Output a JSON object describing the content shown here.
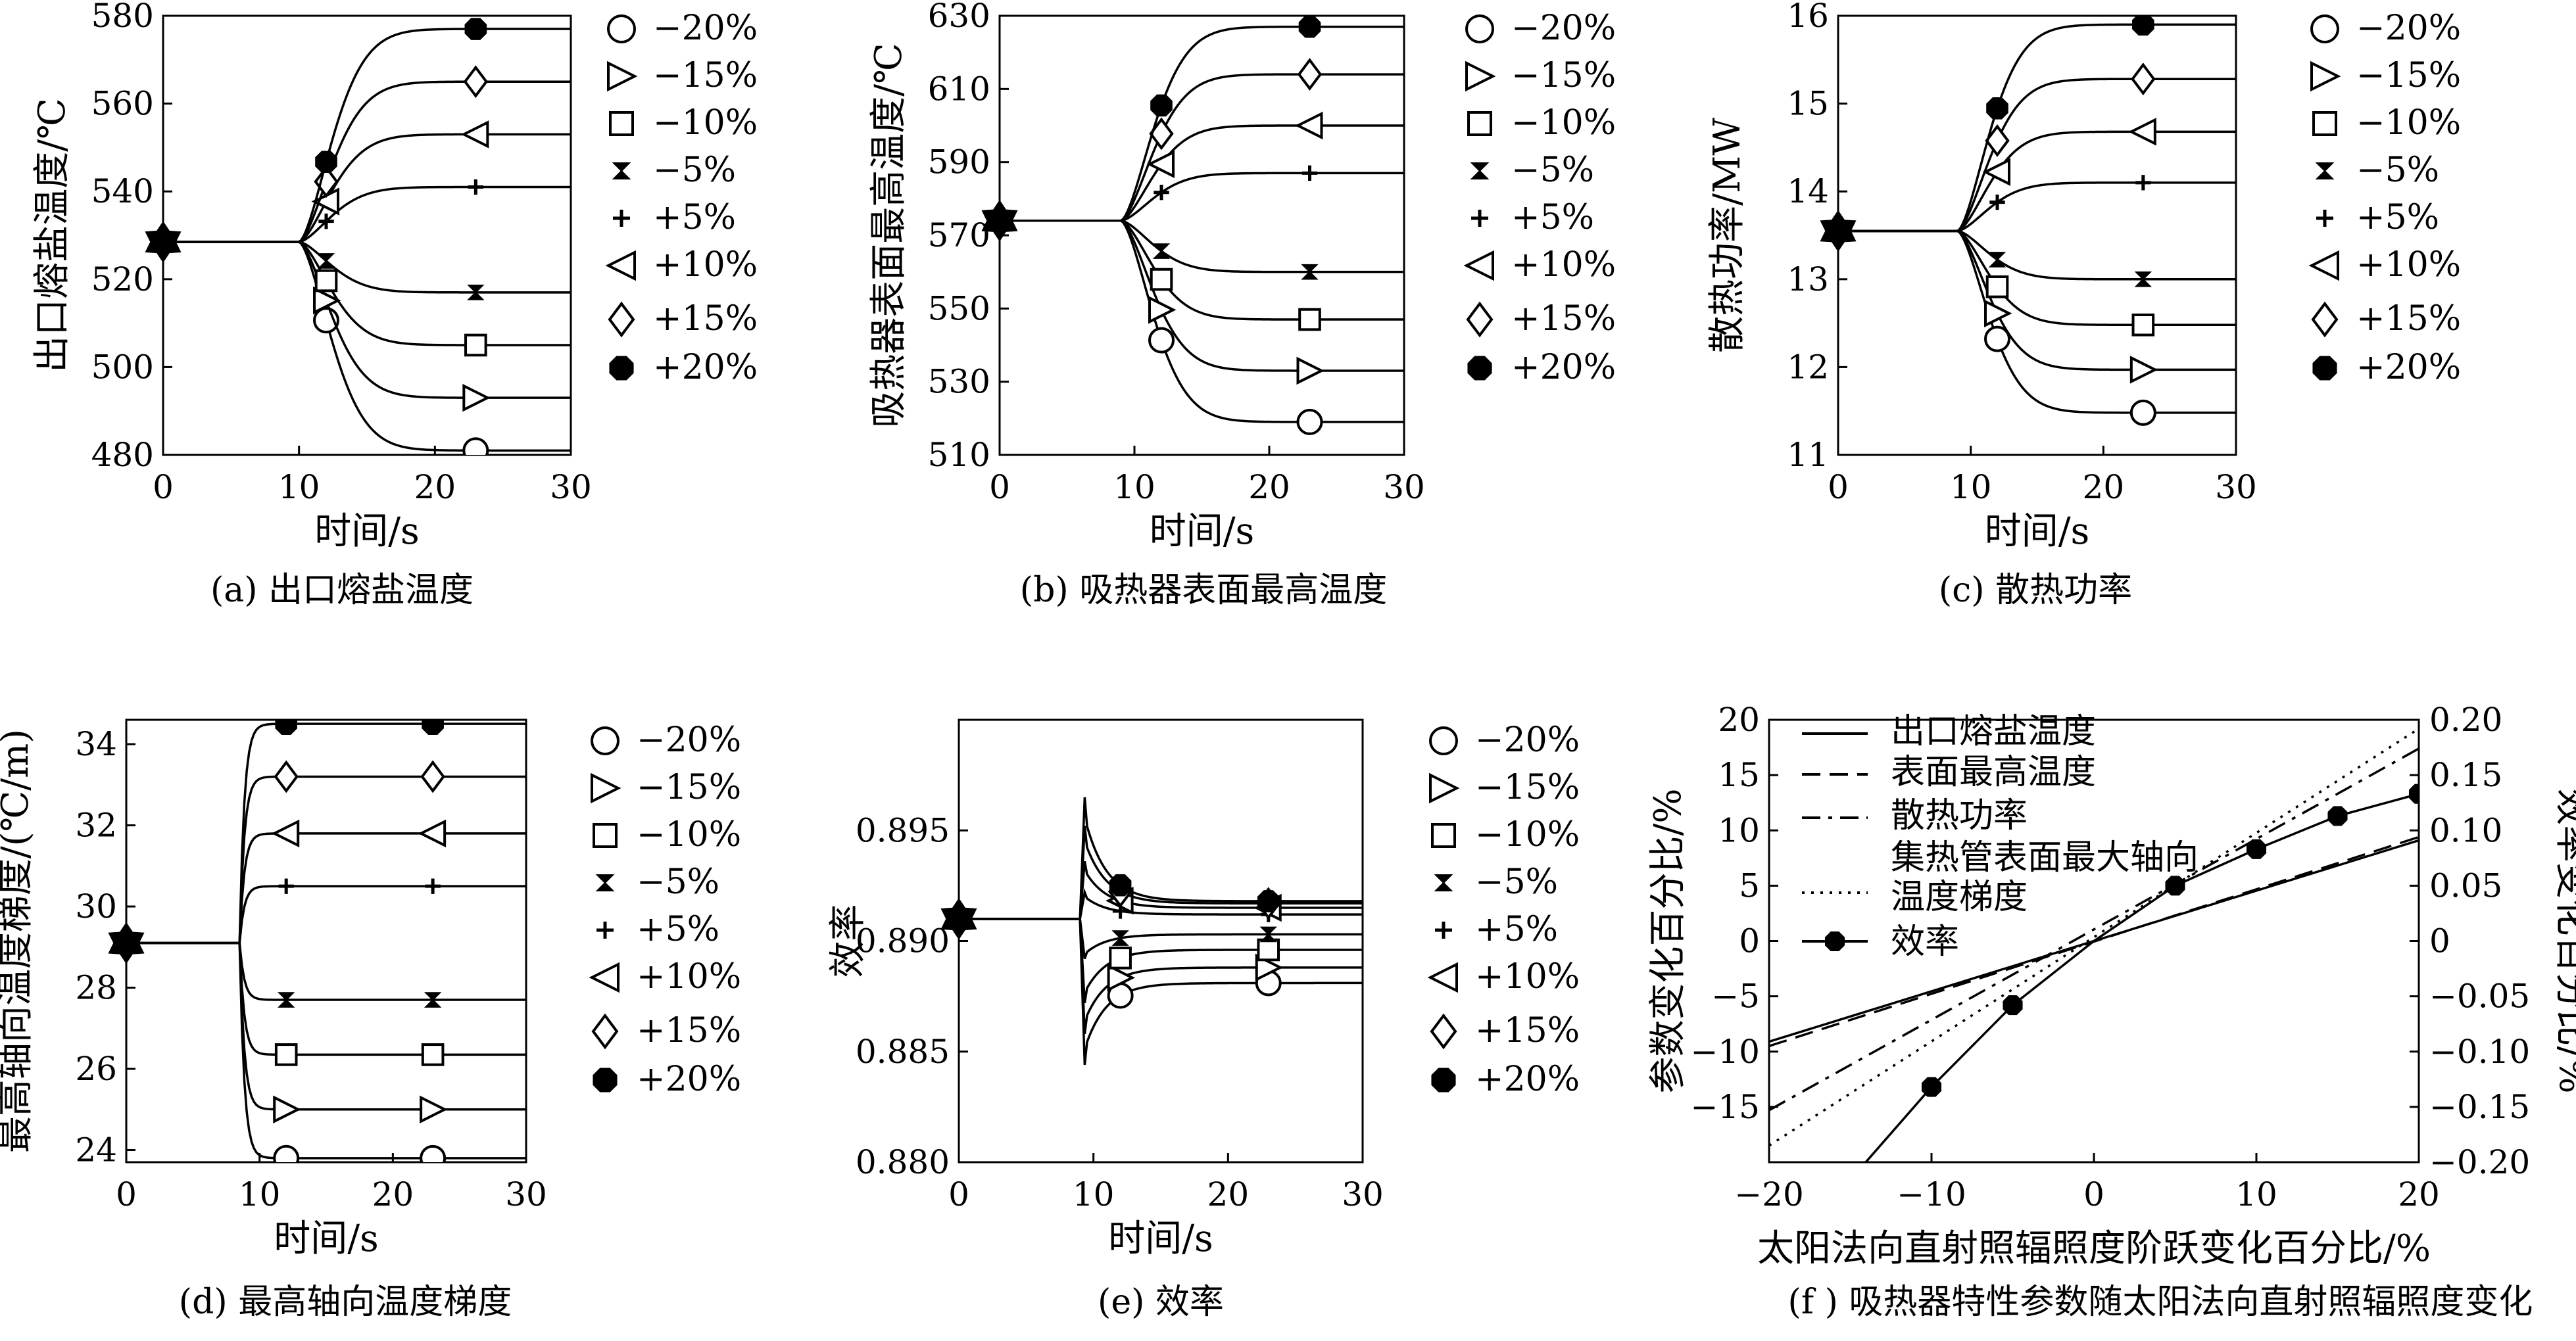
{
  "figure": {
    "series_labels": [
      "−20%",
      "−15%",
      "−10%",
      "−5%",
      "+5%",
      "+10%",
      "+15%",
      "+20%"
    ],
    "series_markers": [
      "circle-icon",
      "triangle-right-icon",
      "square-icon",
      "bowtie-icon",
      "plus-icon",
      "triangle-left-icon",
      "diamond-icon",
      "octagon-filled-icon"
    ]
  },
  "chart_data": [
    {
      "id": "a",
      "type": "line",
      "caption": "(a) 出口熔盐温度",
      "xlabel": "时间/s",
      "ylabel": "出口熔盐温度/℃",
      "xlim": [
        0,
        30
      ],
      "ylim": [
        480,
        580
      ],
      "xticks": [
        0,
        10,
        20,
        30
      ],
      "yticks": [
        480,
        500,
        520,
        540,
        560,
        580
      ],
      "t_step": 10,
      "initial": 528.5,
      "series": [
        {
          "name": "−20%",
          "final": 481
        },
        {
          "name": "−15%",
          "final": 493
        },
        {
          "name": "−10%",
          "final": 505
        },
        {
          "name": "−5%",
          "final": 517
        },
        {
          "name": "+5%",
          "final": 541
        },
        {
          "name": "+10%",
          "final": 553
        },
        {
          "name": "+15%",
          "final": 565
        },
        {
          "name": "+20%",
          "final": 577
        }
      ]
    },
    {
      "id": "b",
      "type": "line",
      "caption": "(b) 吸热器表面最高温度",
      "xlabel": "时间/s",
      "ylabel": "吸热器表面最高温度/℃",
      "xlim": [
        0,
        30
      ],
      "ylim": [
        510,
        630
      ],
      "xticks": [
        0,
        10,
        20,
        30
      ],
      "yticks": [
        510,
        530,
        550,
        570,
        590,
        610,
        630
      ],
      "t_step": 9,
      "initial": 574,
      "series": [
        {
          "name": "−20%",
          "final": 519
        },
        {
          "name": "−15%",
          "final": 533
        },
        {
          "name": "−10%",
          "final": 547
        },
        {
          "name": "−5%",
          "final": 560
        },
        {
          "name": "+5%",
          "final": 587
        },
        {
          "name": "+10%",
          "final": 600
        },
        {
          "name": "+15%",
          "final": 614
        },
        {
          "name": "+20%",
          "final": 627
        }
      ]
    },
    {
      "id": "c",
      "type": "line",
      "caption": "(c) 散热功率",
      "xlabel": "时间/s",
      "ylabel": "散热功率/MW",
      "xlim": [
        0,
        30
      ],
      "ylim": [
        11,
        16
      ],
      "xticks": [
        0,
        10,
        20,
        30
      ],
      "yticks": [
        11,
        12,
        13,
        14,
        15,
        16
      ],
      "t_step": 9,
      "initial": 13.55,
      "series": [
        {
          "name": "−20%",
          "final": 11.48
        },
        {
          "name": "−15%",
          "final": 11.97
        },
        {
          "name": "−10%",
          "final": 12.48
        },
        {
          "name": "−5%",
          "final": 13.0
        },
        {
          "name": "+5%",
          "final": 14.1
        },
        {
          "name": "+10%",
          "final": 14.68
        },
        {
          "name": "+15%",
          "final": 15.28
        },
        {
          "name": "+20%",
          "final": 15.9
        }
      ]
    },
    {
      "id": "d",
      "type": "line",
      "caption": "(d) 最高轴向温度梯度",
      "xlabel": "时间/s",
      "ylabel": "最高轴向温度梯度/(℃/m)",
      "xlim": [
        0,
        30
      ],
      "ylim": [
        23.7,
        34.6
      ],
      "xticks": [
        0,
        10,
        20,
        30
      ],
      "yticks": [
        24,
        26,
        28,
        30,
        32,
        34
      ],
      "t_step": 8.5,
      "initial": 29.1,
      "series": [
        {
          "name": "−20%",
          "final": 23.8
        },
        {
          "name": "−15%",
          "final": 25.0
        },
        {
          "name": "−10%",
          "final": 26.35
        },
        {
          "name": "−5%",
          "final": 27.7
        },
        {
          "name": "+5%",
          "final": 30.5
        },
        {
          "name": "+10%",
          "final": 31.8
        },
        {
          "name": "+15%",
          "final": 33.2
        },
        {
          "name": "+20%",
          "final": 34.5
        }
      ]
    },
    {
      "id": "e",
      "type": "line",
      "caption": "(e) 效率",
      "xlabel": "时间/s",
      "ylabel": "效率",
      "xlim": [
        0,
        30
      ],
      "ylim": [
        0.88,
        0.9
      ],
      "xticks": [
        0,
        10,
        20,
        30
      ],
      "yticks": [
        0.88,
        0.885,
        0.89,
        0.895
      ],
      "ytick_labels": [
        "0.880",
        "0.885",
        "0.890",
        "0.895"
      ],
      "t_step": 9,
      "initial": 0.891,
      "series": [
        {
          "name": "−20%",
          "final": 0.8881,
          "overshoot": -0.0066
        },
        {
          "name": "−15%",
          "final": 0.8888,
          "overshoot": -0.0052
        },
        {
          "name": "−10%",
          "final": 0.8896,
          "overshoot": -0.0038
        },
        {
          "name": "−5%",
          "final": 0.8903,
          "overshoot": -0.0018
        },
        {
          "name": "+5%",
          "final": 0.8912,
          "overshoot": 0.0012
        },
        {
          "name": "+10%",
          "final": 0.8915,
          "overshoot": 0.0026
        },
        {
          "name": "+15%",
          "final": 0.8917,
          "overshoot": 0.0042
        },
        {
          "name": "+20%",
          "final": 0.8918,
          "overshoot": 0.0055
        }
      ]
    },
    {
      "id": "f",
      "type": "line",
      "caption": "(f ) 吸热器特性参数随太阳法向直射照辐照度变化",
      "xlabel": "太阳法向直射照辐照度阶跃变化百分比/%",
      "ylabel": "参数变化百分比/%",
      "y2label": "效率变化百分比/%",
      "xlim": [
        -20,
        20
      ],
      "ylim": [
        -20,
        20
      ],
      "y2lim": [
        -0.2,
        0.2
      ],
      "xticks": [
        -20,
        -10,
        0,
        10,
        20
      ],
      "yticks": [
        -15,
        -10,
        -5,
        0,
        5,
        10,
        15,
        20
      ],
      "y2ticks": [
        -0.2,
        -0.15,
        -0.1,
        -0.05,
        0,
        0.05,
        0.1,
        0.15,
        0.2
      ],
      "y2tick_labels": [
        "−0.20",
        "−0.15",
        "−0.10",
        "−0.05",
        "0",
        "0.05",
        "0.10",
        "0.15",
        "0.20"
      ],
      "series": [
        {
          "name": "出口熔盐温度",
          "style": "solid",
          "x": [
            -20,
            20
          ],
          "y": [
            -9.1,
            9.1
          ]
        },
        {
          "name": "表面最高温度",
          "style": "dash",
          "x": [
            -20,
            20
          ],
          "y": [
            -9.5,
            9.4
          ]
        },
        {
          "name": "散热功率",
          "style": "dashdot",
          "x": [
            -20,
            20
          ],
          "y": [
            -15.3,
            17.4
          ]
        },
        {
          "name": "集热管表面最大轴向温度梯度",
          "style": "dotted",
          "x": [
            -20,
            20
          ],
          "y": [
            -18.5,
            19.2
          ]
        },
        {
          "name": "效率",
          "style": "solid-marker",
          "axis": "right",
          "x": [
            -20,
            -10,
            -5,
            0,
            5,
            10,
            15,
            20
          ],
          "y": [
            -0.3,
            -0.132,
            -0.058,
            0,
            0.05,
            0.083,
            0.113,
            0.133
          ]
        }
      ]
    }
  ]
}
